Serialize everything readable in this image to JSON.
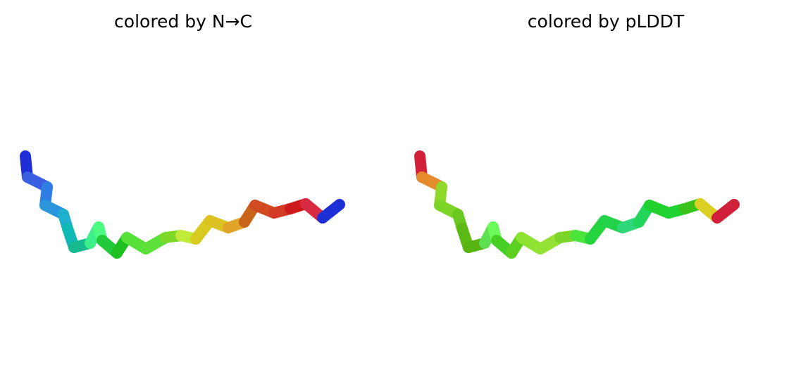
{
  "panels": [
    {
      "title": "colored by N→C",
      "segment_colors": [
        "#1f2fd6",
        "#3a5fe0",
        "#2f7ee6",
        "#2a96dc",
        "#1fb0cf",
        "#10b9b4",
        "#17b98f",
        "#3ef08a",
        "#4dfb82",
        "#22c93a",
        "#1fbf24",
        "#58e03a",
        "#5ee03a",
        "#7ed82a",
        "#c2ea3a",
        "#d8ca20",
        "#dcc223",
        "#e0a52a",
        "#c9651a",
        "#d24a22",
        "#d23c24",
        "#cc1a1a",
        "#d92a44"
      ]
    },
    {
      "title": "colored by pLDDT",
      "segment_colors": [
        "#d0203a",
        "#e68a2e",
        "#8ed82a",
        "#7cd428",
        "#6ac820",
        "#5cb814",
        "#58b410",
        "#5fe050",
        "#6cfb5a",
        "#46d026",
        "#5ccf20",
        "#8ee232",
        "#94e236",
        "#7cd62a",
        "#4ae43a",
        "#24d43e",
        "#22d248",
        "#2ed878",
        "#22d45a",
        "#1fd02e",
        "#20d232",
        "#3ac21a",
        "#dccf24"
      ]
    }
  ]
}
